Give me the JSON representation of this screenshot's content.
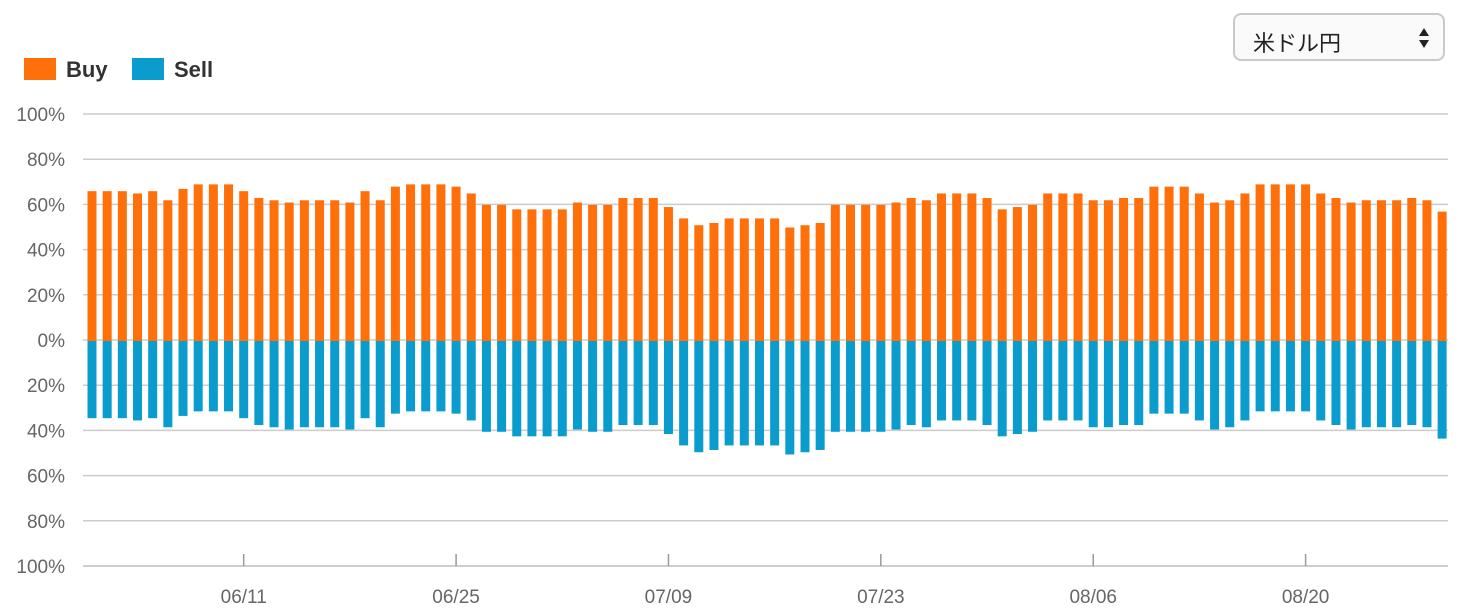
{
  "currency_select": {
    "value": "米ドル円",
    "icon": "updown-arrows-icon"
  },
  "legend": [
    {
      "label": "Buy",
      "color": "#ff6f0a"
    },
    {
      "label": "Sell",
      "color": "#0a9ccc"
    }
  ],
  "chart_data": {
    "type": "bar",
    "stacked": "diverging",
    "y_tick_labels": [
      "100%",
      "80%",
      "60%",
      "40%",
      "20%",
      "0%",
      "20%",
      "40%",
      "60%",
      "80%",
      "100%"
    ],
    "ylim": [
      -100,
      100
    ],
    "x_tick_labels": [
      "06/11",
      "06/25",
      "07/09",
      "07/23",
      "08/06",
      "08/20"
    ],
    "x_tick_bar_index": [
      10,
      24,
      38,
      52,
      66,
      80
    ],
    "grid": true,
    "legend_position": "top-left",
    "series": [
      {
        "name": "Buy",
        "color": "#ff6f0a",
        "values": [
          66,
          66,
          66,
          65,
          66,
          62,
          67,
          69,
          69,
          69,
          66,
          63,
          62,
          61,
          62,
          62,
          62,
          61,
          66,
          62,
          68,
          69,
          69,
          69,
          68,
          65,
          60,
          60,
          58,
          58,
          58,
          58,
          61,
          60,
          60,
          63,
          63,
          63,
          59,
          54,
          51,
          52,
          54,
          54,
          54,
          54,
          50,
          51,
          52,
          60,
          60,
          60,
          60,
          61,
          63,
          62,
          65,
          65,
          65,
          63,
          58,
          59,
          60,
          65,
          65,
          65,
          62,
          62,
          63,
          63,
          68,
          68,
          68,
          65,
          61,
          62,
          65,
          69,
          69,
          69,
          69,
          65,
          63,
          61,
          62,
          62,
          62,
          63,
          62,
          57
        ]
      },
      {
        "name": "Sell",
        "color": "#0a9ccc",
        "values": [
          34,
          34,
          34,
          35,
          34,
          38,
          33,
          31,
          31,
          31,
          34,
          37,
          38,
          39,
          38,
          38,
          38,
          39,
          34,
          38,
          32,
          31,
          31,
          31,
          32,
          35,
          40,
          40,
          42,
          42,
          42,
          42,
          39,
          40,
          40,
          37,
          37,
          37,
          41,
          46,
          49,
          48,
          46,
          46,
          46,
          46,
          50,
          49,
          48,
          40,
          40,
          40,
          40,
          39,
          37,
          38,
          35,
          35,
          35,
          37,
          42,
          41,
          40,
          35,
          35,
          35,
          38,
          38,
          37,
          37,
          32,
          32,
          32,
          35,
          39,
          38,
          35,
          31,
          31,
          31,
          31,
          35,
          37,
          39,
          38,
          38,
          38,
          37,
          38,
          43
        ]
      }
    ]
  }
}
